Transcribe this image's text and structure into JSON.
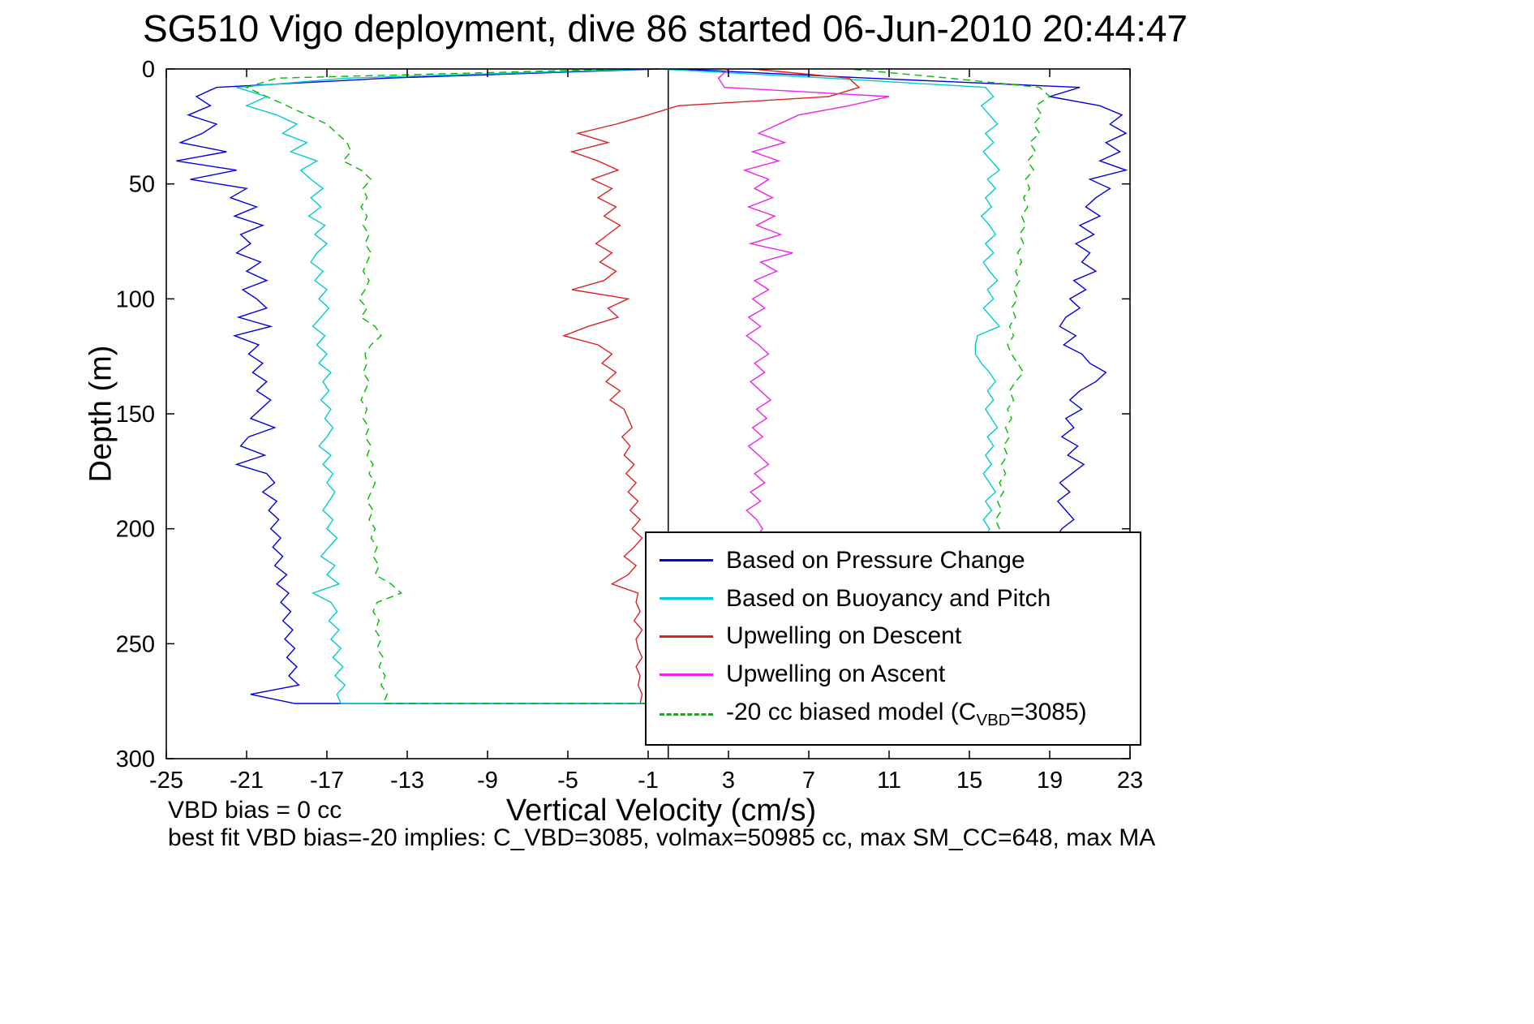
{
  "chart_data": {
    "type": "line",
    "title": "SG510 Vigo deployment, dive 86 started 06-Jun-2010 20:44:47",
    "xlabel": "Vertical Velocity (cm/s)",
    "ylabel": "Depth (m)",
    "xlim": [
      -25,
      23
    ],
    "ylim": [
      0,
      300
    ],
    "y_axis_reversed": true,
    "grid": false,
    "zero_line_x": 0,
    "x_ticks": [
      -25,
      -21,
      -17,
      -13,
      -9,
      -5,
      -1,
      3,
      7,
      11,
      15,
      19,
      23
    ],
    "y_ticks": [
      0,
      50,
      100,
      150,
      200,
      250,
      300
    ],
    "legend_position": "lower-right-inside",
    "depths": [
      0,
      4,
      8,
      12,
      16,
      20,
      24,
      28,
      32,
      36,
      40,
      44,
      48,
      52,
      56,
      60,
      64,
      68,
      72,
      76,
      80,
      84,
      88,
      92,
      96,
      100,
      104,
      108,
      112,
      116,
      120,
      124,
      128,
      132,
      136,
      140,
      144,
      148,
      152,
      156,
      160,
      164,
      168,
      172,
      176,
      180,
      184,
      188,
      192,
      196,
      200,
      204,
      208,
      212,
      216,
      220,
      224,
      228,
      232,
      236,
      240,
      244,
      248,
      252,
      256,
      260,
      264,
      268,
      272,
      276
    ],
    "series": [
      {
        "name": "Based on Pressure Change",
        "color": "#0000dd",
        "dashed": false,
        "descent": [
          -0.5,
          -14.0,
          -22.5,
          -23.5,
          -22.8,
          -23.9,
          -22.5,
          -23.2,
          -24.3,
          -22.0,
          -24.5,
          -21.5,
          -23.8,
          -21.0,
          -21.8,
          -20.5,
          -21.6,
          -20.2,
          -21.3,
          -20.8,
          -21.5,
          -20.3,
          -21.0,
          -20.0,
          -21.2,
          -20.5,
          -20.0,
          -21.4,
          -19.8,
          -21.6,
          -20.4,
          -20.9,
          -20.2,
          -20.7,
          -20.0,
          -20.5,
          -19.8,
          -20.3,
          -20.8,
          -19.6,
          -20.9,
          -21.3,
          -20.1,
          -21.5,
          -20.0,
          -19.6,
          -20.2,
          -19.5,
          -19.9,
          -19.4,
          -19.8,
          -19.3,
          -19.7,
          -19.2,
          -19.6,
          -19.0,
          -19.5,
          -18.9,
          -19.3,
          -18.8,
          -19.2,
          -18.7,
          -19.1,
          -18.6,
          -19.0,
          -18.5,
          -18.9,
          -18.4,
          -20.8,
          -18.6
        ],
        "ascent": [
          0.5,
          10.0,
          20.5,
          19.0,
          21.5,
          22.6,
          22.0,
          22.8,
          21.8,
          22.5,
          21.5,
          22.8,
          21.0,
          22.0,
          21.3,
          20.8,
          21.5,
          20.5,
          21.2,
          20.3,
          21.0,
          20.6,
          21.3,
          20.2,
          20.8,
          20.0,
          20.5,
          19.8,
          19.5,
          20.3,
          19.7,
          20.6,
          21.0,
          21.8,
          21.3,
          20.5,
          20.0,
          20.6,
          19.8,
          20.2,
          19.6,
          20.4,
          19.9,
          20.7,
          20.1,
          19.5,
          20.0,
          19.4,
          19.8,
          20.2,
          19.6,
          19.3,
          19.7,
          19.1,
          19.5,
          18.9,
          19.3,
          18.8,
          19.2,
          18.7,
          19.1,
          18.6,
          19.0,
          18.5,
          18.9,
          18.4,
          18.8,
          18.3,
          18.7,
          18.5
        ]
      },
      {
        "name": "Based on Buoyancy and Pitch",
        "color": "#00cccc",
        "dashed": false,
        "descent": [
          -1.0,
          -16.0,
          -21.5,
          -20.0,
          -21.0,
          -19.5,
          -18.5,
          -19.2,
          -18.0,
          -18.8,
          -17.5,
          -18.3,
          -17.8,
          -17.2,
          -17.8,
          -17.3,
          -17.9,
          -17.1,
          -17.6,
          -17.0,
          -17.5,
          -17.8,
          -17.2,
          -17.6,
          -17.0,
          -17.4,
          -16.9,
          -17.3,
          -17.7,
          -17.1,
          -17.5,
          -17.0,
          -17.4,
          -16.8,
          -17.2,
          -16.9,
          -17.3,
          -16.8,
          -17.1,
          -16.7,
          -17.0,
          -17.4,
          -16.8,
          -17.2,
          -16.7,
          -17.0,
          -16.6,
          -16.9,
          -17.2,
          -16.7,
          -17.0,
          -16.5,
          -16.9,
          -17.3,
          -16.6,
          -17.0,
          -16.4,
          -17.7,
          -16.8,
          -16.5,
          -16.9,
          -16.4,
          -16.8,
          -16.3,
          -16.7,
          -16.2,
          -16.6,
          -16.1,
          -16.5,
          -16.3
        ],
        "ascent": [
          -0.5,
          8.0,
          15.8,
          16.2,
          15.6,
          16.0,
          16.4,
          15.8,
          16.2,
          15.7,
          16.1,
          16.5,
          15.9,
          16.3,
          15.8,
          16.1,
          15.6,
          16.0,
          16.3,
          15.8,
          16.2,
          15.7,
          16.0,
          16.4,
          15.9,
          16.2,
          15.7,
          16.1,
          16.5,
          15.4,
          15.3,
          15.3,
          15.6,
          16.0,
          16.3,
          15.9,
          16.2,
          15.8,
          16.1,
          16.4,
          15.9,
          16.2,
          15.8,
          16.1,
          15.7,
          16.0,
          16.3,
          15.8,
          16.1,
          15.7,
          16.0,
          15.8,
          16.2,
          15.7,
          16.0,
          15.6,
          15.9,
          16.2,
          15.8,
          16.1,
          15.7,
          16.0,
          15.6,
          15.9,
          15.5,
          15.8,
          16.1,
          15.7,
          16.0,
          15.8
        ]
      },
      {
        "name": "Upwelling on Descent",
        "color": "#dd2222",
        "dashed": false,
        "descent": [
          4.2,
          9.0,
          9.5,
          8.0,
          0.5,
          -1.0,
          -2.6,
          -4.5,
          -3.0,
          -4.8,
          -3.5,
          -2.5,
          -3.8,
          -2.8,
          -3.5,
          -2.6,
          -3.2,
          -2.4,
          -3.0,
          -3.6,
          -2.8,
          -3.4,
          -2.6,
          -3.2,
          -4.8,
          -2.0,
          -3.0,
          -2.5,
          -4.0,
          -5.2,
          -3.5,
          -2.8,
          -3.3,
          -2.6,
          -3.1,
          -2.4,
          -2.9,
          -2.2,
          -2.0,
          -1.8,
          -2.3,
          -1.9,
          -2.2,
          -1.7,
          -2.1,
          -1.6,
          -2.0,
          -1.5,
          -1.9,
          -1.4,
          -1.8,
          -1.3,
          -1.7,
          -2.2,
          -1.6,
          -2.0,
          -2.8,
          -1.5,
          -1.6,
          -1.4,
          -1.7,
          -1.3,
          -1.6,
          -1.5,
          -1.3,
          -1.6,
          -1.4,
          -1.5,
          -1.3,
          -1.4
        ]
      },
      {
        "name": "Upwelling on Ascent",
        "color": "#ee22ee",
        "dashed": false,
        "ascent": [
          3.0,
          2.5,
          2.8,
          11.0,
          9.0,
          6.5,
          5.5,
          4.5,
          5.8,
          4.2,
          5.5,
          3.8,
          5.0,
          4.3,
          5.2,
          4.0,
          5.3,
          4.4,
          5.6,
          4.1,
          6.2,
          4.6,
          5.4,
          4.3,
          5.0,
          4.2,
          4.8,
          4.0,
          4.6,
          3.9,
          4.5,
          5.0,
          4.3,
          4.8,
          4.1,
          4.6,
          5.1,
          4.4,
          4.9,
          4.2,
          4.7,
          4.0,
          4.5,
          5.0,
          4.3,
          4.8,
          4.1,
          4.6,
          3.9,
          4.4,
          4.7,
          4.3,
          4.6,
          4.1,
          4.5,
          4.0,
          4.4,
          3.9,
          4.3,
          4.0,
          4.4,
          3.9,
          4.3,
          4.0,
          4.2,
          3.9,
          4.1,
          4.0,
          4.2,
          4.0
        ]
      },
      {
        "name": "-20 cc biased model (C_VBD=3085)",
        "color": "#00bb00",
        "dashed": true,
        "descent": [
          -2.0,
          -19.5,
          -21.0,
          -20.0,
          -19.0,
          -18.0,
          -17.0,
          -16.5,
          -16.0,
          -15.8,
          -16.2,
          -15.3,
          -14.8,
          -15.2,
          -15.0,
          -15.3,
          -15.0,
          -15.2,
          -14.9,
          -15.1,
          -14.8,
          -15.0,
          -15.2,
          -14.9,
          -15.1,
          -15.4,
          -15.0,
          -15.3,
          -14.6,
          -14.3,
          -14.8,
          -15.1,
          -15.0,
          -15.2,
          -14.9,
          -15.1,
          -15.3,
          -15.0,
          -15.2,
          -14.9,
          -15.1,
          -14.8,
          -15.0,
          -14.7,
          -14.9,
          -14.6,
          -14.8,
          -15.0,
          -14.7,
          -14.9,
          -14.6,
          -14.8,
          -14.5,
          -14.7,
          -14.4,
          -14.6,
          -13.8,
          -13.3,
          -14.5,
          -14.7,
          -14.4,
          -14.6,
          -14.3,
          -14.5,
          -14.2,
          -14.4,
          -14.1,
          -14.3,
          -14.0,
          -14.2
        ],
        "ascent": [
          9.0,
          14.0,
          18.5,
          19.0,
          18.3,
          18.6,
          18.2,
          18.5,
          18.0,
          18.3,
          17.9,
          18.2,
          17.8,
          18.0,
          17.7,
          17.9,
          17.6,
          17.8,
          17.5,
          17.7,
          17.4,
          17.6,
          17.3,
          17.5,
          17.2,
          17.4,
          17.1,
          17.3,
          17.0,
          17.2,
          16.9,
          17.1,
          17.4,
          17.7,
          17.3,
          17.0,
          17.2,
          16.9,
          17.1,
          16.8,
          17.0,
          16.7,
          16.9,
          16.6,
          16.8,
          16.5,
          16.7,
          16.4,
          16.6,
          16.3,
          16.5,
          16.4,
          16.6,
          16.2,
          16.5,
          16.1,
          16.4,
          16.0,
          16.3,
          16.1,
          16.4,
          16.0,
          16.3,
          15.9,
          16.2,
          16.0,
          16.3,
          15.9,
          16.2,
          16.0
        ]
      }
    ]
  },
  "legend_model": {
    "pre": "-20 cc biased model (C",
    "sub": "VBD",
    "post": "=3085)"
  },
  "annotations": {
    "vbd_bias": "VBD bias = 0 cc",
    "best_fit": "best fit VBD bias=-20 implies: C_VBD=3085, volmax=50985 cc, max SM_CC=648, max MA"
  }
}
